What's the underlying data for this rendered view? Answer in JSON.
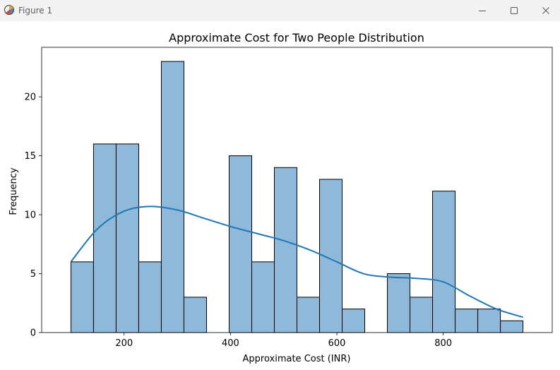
{
  "window": {
    "title": "Figure 1",
    "controls": [
      "minimize-icon",
      "maximize-icon",
      "close-icon"
    ]
  },
  "chart_data": {
    "type": "bar",
    "title": "Approximate Cost for Two People Distribution",
    "xlabel": "Approximate Cost (INR)",
    "ylabel": "Frequency",
    "xlim": [
      45,
      1005
    ],
    "ylim": [
      0,
      24.2
    ],
    "xticks": [
      200,
      400,
      600,
      800
    ],
    "yticks": [
      0,
      5,
      10,
      15,
      20
    ],
    "bin_width": 42.5,
    "bins": [
      {
        "start": 100,
        "end": 142.5,
        "count": 6
      },
      {
        "start": 142.5,
        "end": 185,
        "count": 16
      },
      {
        "start": 185,
        "end": 227.5,
        "count": 16
      },
      {
        "start": 227.5,
        "end": 270,
        "count": 6
      },
      {
        "start": 270,
        "end": 312.5,
        "count": 23
      },
      {
        "start": 312.5,
        "end": 355,
        "count": 3
      },
      {
        "start": 355,
        "end": 397.5,
        "count": 0
      },
      {
        "start": 397.5,
        "end": 440,
        "count": 15
      },
      {
        "start": 440,
        "end": 482.5,
        "count": 6
      },
      {
        "start": 482.5,
        "end": 525,
        "count": 14
      },
      {
        "start": 525,
        "end": 567.5,
        "count": 3
      },
      {
        "start": 567.5,
        "end": 610,
        "count": 13
      },
      {
        "start": 610,
        "end": 652.5,
        "count": 2
      },
      {
        "start": 652.5,
        "end": 695,
        "count": 0
      },
      {
        "start": 695,
        "end": 737.5,
        "count": 5
      },
      {
        "start": 737.5,
        "end": 780,
        "count": 3
      },
      {
        "start": 780,
        "end": 822.5,
        "count": 12
      },
      {
        "start": 822.5,
        "end": 865,
        "count": 2
      },
      {
        "start": 865,
        "end": 907.5,
        "count": 2
      },
      {
        "start": 907.5,
        "end": 950,
        "count": 1
      }
    ],
    "kde": {
      "x": [
        100,
        150,
        200,
        250,
        300,
        350,
        400,
        450,
        500,
        550,
        600,
        650,
        700,
        750,
        800,
        850,
        900,
        950
      ],
      "y": [
        6.0,
        8.8,
        10.3,
        10.7,
        10.4,
        9.7,
        9.0,
        8.4,
        7.8,
        7.0,
        6.0,
        5.0,
        4.7,
        4.6,
        4.3,
        3.1,
        2.0,
        1.3
      ]
    },
    "grid": false,
    "colors": {
      "bar_fill": "#8fb9db",
      "bar_edge": "#000000",
      "kde_line": "#1f77b4"
    }
  }
}
